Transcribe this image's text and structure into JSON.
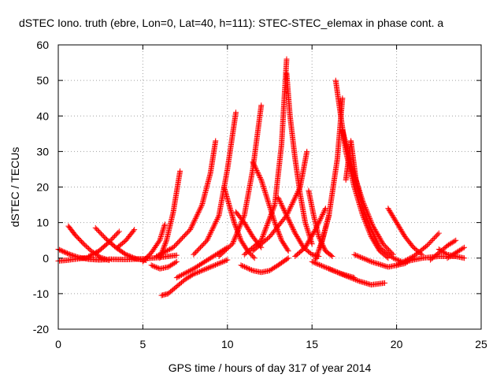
{
  "chart_data": {
    "type": "scatter",
    "title": "dSTEC Iono. truth (ebre, Lon=0, Lat=40, h=111): STEC-STEC_elemax in phase cont. a",
    "xlabel": "GPS time / hours of day 317 of year 2014",
    "ylabel": "dSTEC  / TECUs",
    "xlim": [
      0,
      25
    ],
    "ylim": [
      -20,
      60
    ],
    "xticks": [
      0,
      5,
      10,
      15,
      20,
      25
    ],
    "yticks": [
      -20,
      -10,
      0,
      10,
      20,
      30,
      40,
      50,
      60
    ],
    "grid": true,
    "marker": "+",
    "series": [
      {
        "color": "#ff0000",
        "x": [
          0.0,
          0.6,
          1.2,
          1.8,
          2.4,
          3.0
        ],
        "y": [
          2.5,
          1.2,
          0.2,
          -0.3,
          -0.5,
          -0.4
        ]
      },
      {
        "color": "#ff0000",
        "x": [
          0.0,
          0.5,
          1.0,
          1.5,
          2.0
        ],
        "y": [
          -0.8,
          -0.6,
          -0.3,
          0.0,
          0.3
        ]
      },
      {
        "color": "#ff0000",
        "x": [
          0.6,
          1.0,
          1.5,
          2.0,
          2.5,
          3.0
        ],
        "y": [
          9.0,
          6.5,
          4.0,
          1.8,
          0.2,
          -0.6
        ]
      },
      {
        "color": "#ff0000",
        "x": [
          2.2,
          2.8,
          3.4,
          4.0,
          4.6,
          5.2
        ],
        "y": [
          8.5,
          5.5,
          3.0,
          1.0,
          -0.2,
          -0.6
        ]
      },
      {
        "color": "#ff0000",
        "x": [
          1.8,
          2.4,
          3.0,
          3.6
        ],
        "y": [
          0.5,
          2.0,
          4.5,
          7.5
        ]
      },
      {
        "color": "#ff0000",
        "x": [
          3.5,
          4.0,
          4.5
        ],
        "y": [
          3.0,
          5.0,
          8.0
        ]
      },
      {
        "color": "#ff0000",
        "x": [
          3.0,
          4.0,
          5.0,
          6.0,
          7.0
        ],
        "y": [
          -0.3,
          -0.4,
          -0.2,
          0.2,
          0.8
        ]
      },
      {
        "color": "#ff0000",
        "x": [
          5.0,
          5.5,
          6.0,
          6.3
        ],
        "y": [
          -1.0,
          1.5,
          5.0,
          9.5
        ]
      },
      {
        "color": "#ff0000",
        "x": [
          5.5,
          6.0,
          6.5,
          7.0
        ],
        "y": [
          -2.0,
          -3.0,
          -2.5,
          -1.0
        ]
      },
      {
        "color": "#ff0000",
        "x": [
          6.0,
          6.4,
          6.8,
          7.2
        ],
        "y": [
          0.0,
          5.0,
          13.0,
          24.5
        ]
      },
      {
        "color": "#ff0000",
        "x": [
          5.8,
          6.8,
          7.8,
          8.5,
          9.0,
          9.3
        ],
        "y": [
          0.5,
          3.0,
          8.0,
          15.0,
          24.0,
          33.0
        ]
      },
      {
        "color": "#ff0000",
        "x": [
          8.0,
          8.8,
          9.5,
          10.0,
          10.5
        ],
        "y": [
          1.0,
          5.0,
          12.0,
          25.0,
          41.0
        ]
      },
      {
        "color": "#ff0000",
        "x": [
          6.1,
          6.5,
          7.0,
          7.5,
          8.0,
          8.5,
          9.0,
          9.5,
          10.0
        ],
        "y": [
          -10.5,
          -10.0,
          -8.0,
          -6.0,
          -4.5,
          -3.5,
          -2.5,
          -1.5,
          -0.5
        ]
      },
      {
        "color": "#ff0000",
        "x": [
          7.0,
          8.0,
          9.0,
          10.0
        ],
        "y": [
          -5.5,
          -3.0,
          0.0,
          3.0
        ]
      },
      {
        "color": "#ff0000",
        "x": [
          9.8,
          10.1,
          10.4,
          10.8,
          11.2,
          11.6
        ],
        "y": [
          20.0,
          15.0,
          10.0,
          5.0,
          2.0,
          0.0
        ]
      },
      {
        "color": "#ff0000",
        "x": [
          10.5,
          11.0,
          11.5,
          12.0
        ],
        "y": [
          13.0,
          10.0,
          6.0,
          3.0
        ]
      },
      {
        "color": "#ff0000",
        "x": [
          9.5,
          10.3,
          11.0,
          11.5,
          12.0
        ],
        "y": [
          0.5,
          4.0,
          12.0,
          25.0,
          43.0
        ]
      },
      {
        "color": "#ff0000",
        "x": [
          10.8,
          11.5,
          12.0,
          12.5,
          13.0,
          13.6
        ],
        "y": [
          -2.0,
          -3.5,
          -4.0,
          -3.5,
          -2.0,
          0.0
        ]
      },
      {
        "color": "#ff0000",
        "x": [
          11.5,
          12.0,
          12.4,
          12.8,
          13.2,
          13.6
        ],
        "y": [
          27.0,
          22.0,
          16.0,
          10.0,
          5.0,
          2.0
        ]
      },
      {
        "color": "#ff0000",
        "x": [
          11.0,
          12.0,
          12.8,
          13.2,
          13.5
        ],
        "y": [
          1.0,
          5.0,
          15.0,
          32.0,
          56.0
        ]
      },
      {
        "color": "#ff0000",
        "x": [
          13.5,
          13.7,
          14.0,
          14.3,
          14.6,
          15.0
        ],
        "y": [
          52.0,
          40.0,
          28.0,
          18.0,
          10.0,
          4.0
        ]
      },
      {
        "color": "#ff0000",
        "x": [
          13.0,
          13.5,
          14.0,
          14.5,
          15.0,
          15.4
        ],
        "y": [
          17.0,
          12.0,
          7.0,
          3.0,
          1.0,
          0.5
        ]
      },
      {
        "color": "#ff0000",
        "x": [
          11.5,
          12.5,
          13.5,
          14.3,
          14.7
        ],
        "y": [
          2.0,
          6.0,
          12.0,
          20.0,
          30.0
        ]
      },
      {
        "color": "#ff0000",
        "x": [
          14.8,
          15.1,
          15.4,
          15.8,
          16.2
        ],
        "y": [
          19.0,
          12.0,
          6.0,
          2.0,
          0.5
        ]
      },
      {
        "color": "#ff0000",
        "x": [
          15.2,
          15.6,
          16.0
        ],
        "y": [
          -0.5,
          5.0,
          12.0
        ]
      },
      {
        "color": "#ff0000",
        "x": [
          14.0,
          14.6,
          15.2,
          15.8
        ],
        "y": [
          0.5,
          3.0,
          8.0,
          14.0
        ]
      },
      {
        "color": "#ff0000",
        "x": [
          16.4,
          16.7,
          17.0,
          17.5,
          18.0,
          18.5,
          19.0,
          19.5
        ],
        "y": [
          50.0,
          40.0,
          30.0,
          20.0,
          12.0,
          6.0,
          2.0,
          0.0
        ]
      },
      {
        "color": "#ff0000",
        "x": [
          15.5,
          16.0,
          16.5,
          16.8
        ],
        "y": [
          3.0,
          12.0,
          28.0,
          45.0
        ]
      },
      {
        "color": "#ff0000",
        "x": [
          16.8,
          17.4,
          18.0,
          18.6,
          19.2,
          19.8
        ],
        "y": [
          36.0,
          25.0,
          16.0,
          9.0,
          4.0,
          1.0
        ]
      },
      {
        "color": "#ff0000",
        "x": [
          17.0,
          17.3,
          17.6,
          18.0,
          18.5,
          19.0,
          19.8,
          20.3
        ],
        "y": [
          22.0,
          33.0,
          22.0,
          14.0,
          8.0,
          3.0,
          0.0,
          -1.0
        ]
      },
      {
        "color": "#ff0000",
        "x": [
          15.0,
          16.0,
          17.0,
          17.8,
          18.5,
          19.3
        ],
        "y": [
          -1.0,
          -3.0,
          -5.0,
          -6.5,
          -7.5,
          -7.0
        ]
      },
      {
        "color": "#ff0000",
        "x": [
          16.0,
          16.8,
          17.5
        ],
        "y": [
          -3.0,
          -4.5,
          -5.5
        ]
      },
      {
        "color": "#ff0000",
        "x": [
          19.5,
          20.0,
          20.5,
          21.0,
          21.5
        ],
        "y": [
          14.0,
          10.0,
          6.0,
          3.0,
          1.0
        ]
      },
      {
        "color": "#ff0000",
        "x": [
          17.5,
          18.5,
          19.5,
          20.5,
          21.0
        ],
        "y": [
          1.0,
          -1.0,
          -2.5,
          -1.5,
          0.0
        ]
      },
      {
        "color": "#ff0000",
        "x": [
          20.0,
          21.0,
          21.8,
          22.5
        ],
        "y": [
          -2.0,
          0.5,
          3.5,
          7.0
        ]
      },
      {
        "color": "#ff0000",
        "x": [
          20.5,
          21.5,
          22.5,
          23.5
        ],
        "y": [
          -1.0,
          0.0,
          0.5,
          0.5
        ]
      },
      {
        "color": "#ff0000",
        "x": [
          22.0,
          22.5,
          23.0,
          23.5
        ],
        "y": [
          -0.5,
          1.5,
          3.5,
          5.0
        ]
      },
      {
        "color": "#ff0000",
        "x": [
          22.5,
          23.0,
          23.5,
          24.0
        ],
        "y": [
          2.5,
          1.0,
          0.5,
          0.0
        ]
      },
      {
        "color": "#ff0000",
        "x": [
          23.0,
          23.5,
          24.0
        ],
        "y": [
          0.0,
          1.5,
          3.0
        ]
      }
    ]
  }
}
